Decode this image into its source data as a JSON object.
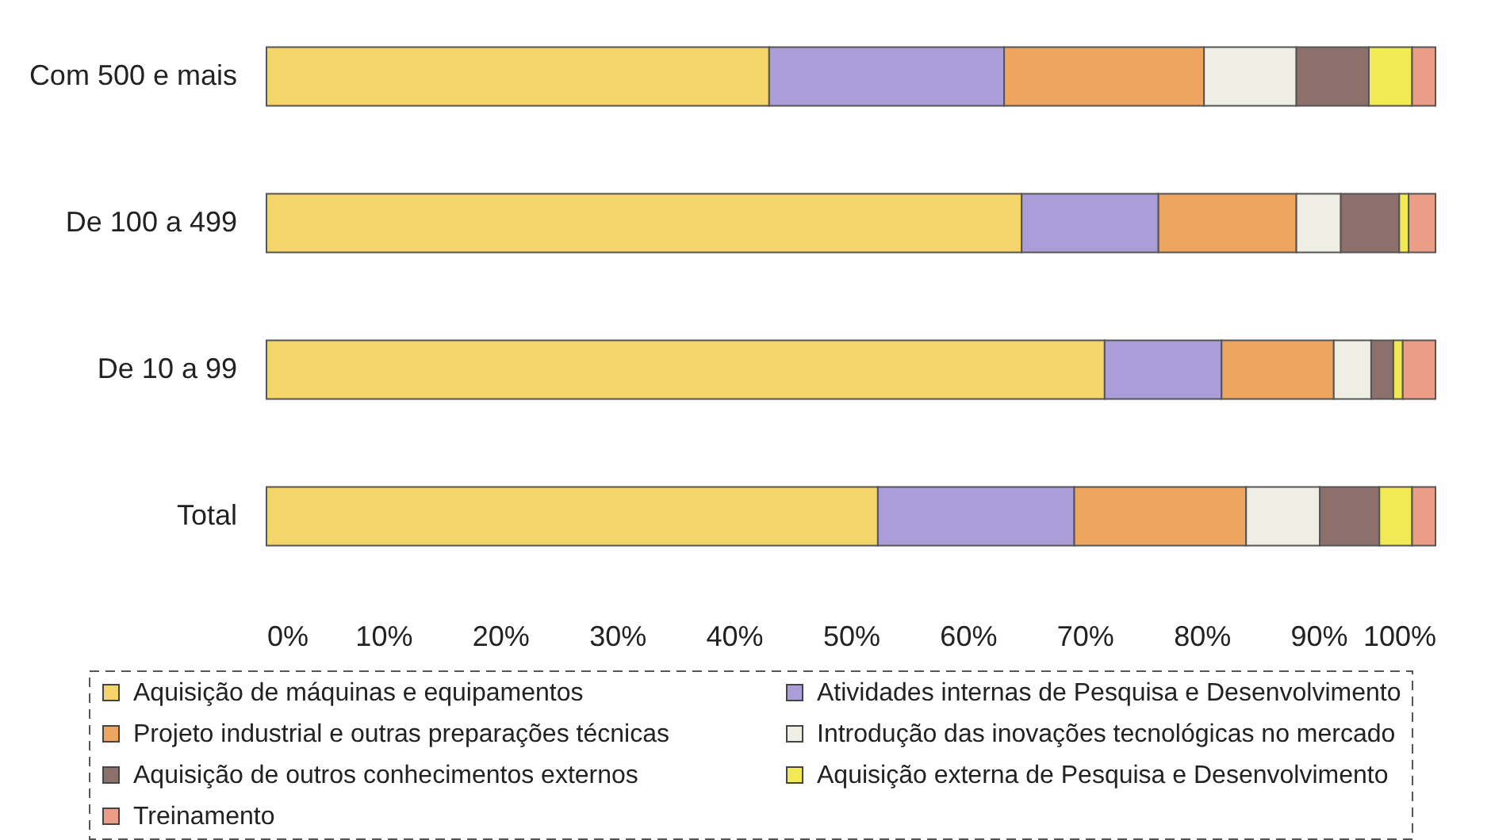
{
  "chart_data": {
    "type": "bar",
    "orientation": "horizontal",
    "stacked": true,
    "categories": [
      "Com 500 e mais",
      "De 100 a 499",
      "De 10 a 99",
      "Total"
    ],
    "series": [
      {
        "name": "Aquisição de máquinas e equipamentos",
        "color": "#f5d46a",
        "values": [
          43.0,
          64.6,
          71.7,
          52.3
        ]
      },
      {
        "name": "Atividades internas de Pesquisa e Desenvolvimento",
        "color": "#ab9dd8",
        "values": [
          20.1,
          11.7,
          10.0,
          16.8
        ]
      },
      {
        "name": "Projeto industrial e outras preparações técnicas",
        "color": "#eea55f",
        "values": [
          17.1,
          11.8,
          9.6,
          14.7
        ]
      },
      {
        "name": "Introdução das inovações tecnológicas no mercado",
        "color": "#eeeee4",
        "values": [
          7.9,
          3.8,
          3.2,
          6.3
        ]
      },
      {
        "name": "Aquisição de outros conhecimentos externos",
        "color": "#8b706b",
        "values": [
          6.2,
          5.0,
          1.9,
          5.1
        ]
      },
      {
        "name": "Aquisição externa de Pesquisa e Desenvolvimento",
        "color": "#f1ea52",
        "values": [
          3.7,
          0.8,
          0.8,
          2.8
        ]
      },
      {
        "name": "Treinamento",
        "color": "#ec9d87",
        "values": [
          2.0,
          2.3,
          2.8,
          2.0
        ]
      }
    ],
    "xlim": [
      0,
      100
    ],
    "xticks": [
      {
        "value": 0,
        "label": "0%"
      },
      {
        "value": 10,
        "label": "10%"
      },
      {
        "value": 20,
        "label": "20%"
      },
      {
        "value": 30,
        "label": "30%"
      },
      {
        "value": 40,
        "label": "40%"
      },
      {
        "value": 50,
        "label": "50%"
      },
      {
        "value": 60,
        "label": "60%"
      },
      {
        "value": 70,
        "label": "70%"
      },
      {
        "value": 80,
        "label": "80%"
      },
      {
        "value": 90,
        "label": "90%"
      },
      {
        "value": 100,
        "label": "100%"
      }
    ],
    "legend": "bottom"
  }
}
